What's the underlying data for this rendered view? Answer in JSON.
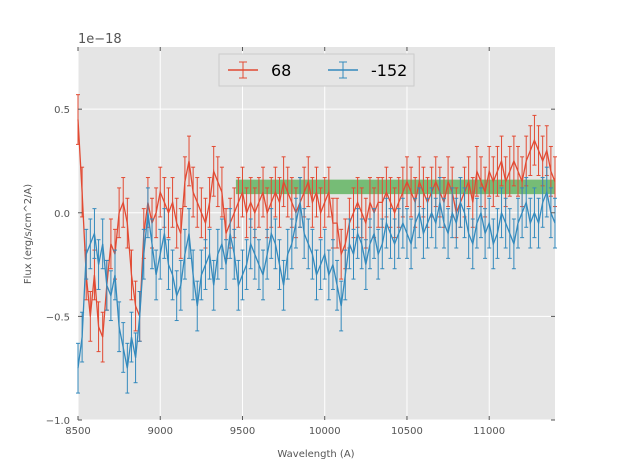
{
  "chart_data": {
    "type": "line",
    "title": "",
    "xlabel": "Wavelength (A)",
    "ylabel": "Flux (erg/s/cm^2/A)",
    "offset_label": "1e−18",
    "xlim": [
      8500,
      11400
    ],
    "ylim": [
      -1.0,
      0.8
    ],
    "x_ticks": [
      8500,
      9000,
      9500,
      10000,
      10500,
      11000
    ],
    "y_ticks": [
      -1.0,
      -0.5,
      0.0,
      0.5
    ],
    "y_tick_labels": [
      "−1.0",
      "−0.5",
      "0.0",
      "0.5"
    ],
    "grid": true,
    "legend_position": "upper-center",
    "band": {
      "x_start": 9460,
      "x_end": 11400,
      "y_low": 0.09,
      "y_high": 0.16,
      "color": "#2ca02c"
    },
    "series": [
      {
        "name": "68",
        "color": "#e24a33",
        "error": 0.12,
        "x": [
          8500,
          8525,
          8550,
          8575,
          8600,
          8625,
          8650,
          8675,
          8700,
          8725,
          8750,
          8775,
          8800,
          8825,
          8850,
          8875,
          8900,
          8925,
          8950,
          8975,
          9000,
          9025,
          9050,
          9075,
          9100,
          9125,
          9150,
          9175,
          9200,
          9225,
          9250,
          9275,
          9300,
          9325,
          9350,
          9375,
          9400,
          9425,
          9450,
          9475,
          9500,
          9525,
          9550,
          9575,
          9600,
          9625,
          9650,
          9675,
          9700,
          9725,
          9750,
          9775,
          9800,
          9825,
          9850,
          9875,
          9900,
          9925,
          9950,
          9975,
          10000,
          10025,
          10050,
          10075,
          10100,
          10125,
          10150,
          10175,
          10200,
          10225,
          10250,
          10275,
          10300,
          10325,
          10350,
          10375,
          10400,
          10425,
          10450,
          10475,
          10500,
          10525,
          10550,
          10575,
          10600,
          10625,
          10650,
          10675,
          10700,
          10725,
          10750,
          10775,
          10800,
          10825,
          10850,
          10875,
          10900,
          10925,
          10950,
          10975,
          11000,
          11025,
          11050,
          11075,
          11100,
          11125,
          11150,
          11175,
          11200,
          11225,
          11250,
          11275,
          11300,
          11325,
          11350,
          11375,
          11400
        ],
        "y": [
          0.45,
          0.1,
          -0.3,
          -0.5,
          -0.3,
          -0.55,
          -0.6,
          -0.35,
          -0.15,
          -0.2,
          0.0,
          0.05,
          -0.05,
          -0.3,
          -0.45,
          -0.5,
          -0.1,
          0.05,
          -0.05,
          0.0,
          0.1,
          0.05,
          0.0,
          0.05,
          -0.05,
          -0.1,
          0.15,
          0.25,
          0.1,
          0.05,
          0.0,
          -0.05,
          0.05,
          0.2,
          0.15,
          0.1,
          -0.1,
          -0.05,
          0.0,
          0.05,
          0.1,
          0.0,
          0.05,
          0.0,
          0.05,
          0.1,
          0.0,
          0.05,
          0.1,
          0.05,
          0.15,
          0.1,
          0.05,
          0.0,
          0.05,
          0.1,
          0.15,
          0.05,
          0.1,
          0.0,
          0.05,
          0.1,
          -0.05,
          -0.05,
          -0.2,
          -0.15,
          -0.05,
          0.0,
          0.05,
          0.0,
          -0.05,
          0.05,
          0.0,
          0.05,
          0.05,
          0.1,
          0.05,
          0.0,
          0.05,
          0.1,
          0.15,
          0.1,
          0.05,
          0.15,
          0.1,
          0.05,
          0.1,
          0.15,
          0.1,
          0.05,
          0.15,
          0.1,
          0.0,
          0.05,
          0.1,
          0.15,
          0.05,
          0.2,
          0.15,
          0.1,
          0.2,
          0.15,
          0.2,
          0.25,
          0.15,
          0.2,
          0.25,
          0.2,
          0.15,
          0.25,
          0.3,
          0.35,
          0.3,
          0.25,
          0.3,
          0.2,
          0.15
        ]
      },
      {
        "name": "-152",
        "color": "#348abd",
        "error": 0.12,
        "x": [
          8500,
          8525,
          8550,
          8575,
          8600,
          8625,
          8650,
          8675,
          8700,
          8725,
          8750,
          8775,
          8800,
          8825,
          8850,
          8875,
          8900,
          8925,
          8950,
          8975,
          9000,
          9025,
          9050,
          9075,
          9100,
          9125,
          9150,
          9175,
          9200,
          9225,
          9250,
          9275,
          9300,
          9325,
          9350,
          9375,
          9400,
          9425,
          9450,
          9475,
          9500,
          9525,
          9550,
          9575,
          9600,
          9625,
          9650,
          9675,
          9700,
          9725,
          9750,
          9775,
          9800,
          9825,
          9850,
          9875,
          9900,
          9925,
          9950,
          9975,
          10000,
          10025,
          10050,
          10075,
          10100,
          10125,
          10150,
          10175,
          10200,
          10225,
          10250,
          10275,
          10300,
          10325,
          10350,
          10375,
          10400,
          10425,
          10450,
          10475,
          10500,
          10525,
          10550,
          10575,
          10600,
          10625,
          10650,
          10675,
          10700,
          10725,
          10750,
          10775,
          10800,
          10825,
          10850,
          10875,
          10900,
          10925,
          10950,
          10975,
          11000,
          11025,
          11050,
          11075,
          11100,
          11125,
          11150,
          11175,
          11200,
          11225,
          11250,
          11275,
          11300,
          11325,
          11350,
          11375,
          11400
        ],
        "y": [
          -0.75,
          -0.6,
          -0.2,
          -0.15,
          -0.1,
          -0.25,
          -0.15,
          -0.35,
          -0.4,
          -0.3,
          -0.55,
          -0.65,
          -0.75,
          -0.6,
          -0.7,
          -0.5,
          -0.2,
          0.0,
          -0.15,
          -0.3,
          -0.2,
          -0.1,
          -0.25,
          -0.3,
          -0.4,
          -0.35,
          -0.2,
          -0.1,
          -0.3,
          -0.45,
          -0.3,
          -0.25,
          -0.2,
          -0.35,
          -0.2,
          -0.15,
          -0.25,
          -0.1,
          -0.2,
          -0.35,
          -0.3,
          -0.25,
          -0.15,
          -0.2,
          -0.25,
          -0.3,
          -0.2,
          -0.1,
          -0.15,
          -0.25,
          -0.35,
          -0.2,
          -0.15,
          -0.05,
          0.05,
          -0.1,
          -0.15,
          -0.2,
          -0.3,
          -0.25,
          -0.2,
          -0.3,
          -0.25,
          -0.35,
          -0.45,
          -0.3,
          -0.15,
          -0.2,
          -0.1,
          -0.15,
          -0.25,
          -0.15,
          -0.1,
          -0.2,
          -0.15,
          -0.05,
          -0.1,
          -0.15,
          -0.1,
          -0.05,
          -0.1,
          -0.15,
          -0.05,
          0.0,
          -0.1,
          -0.05,
          0.0,
          -0.05,
          0.05,
          -0.05,
          -0.1,
          0.0,
          -0.05,
          0.05,
          0.0,
          -0.1,
          -0.15,
          -0.05,
          0.0,
          -0.1,
          -0.05,
          -0.15,
          -0.1,
          0.0,
          -0.05,
          -0.1,
          -0.15,
          -0.05,
          0.0,
          0.05,
          -0.05,
          0.0,
          -0.05,
          0.05,
          0.1,
          0.0,
          -0.05
        ]
      }
    ]
  }
}
